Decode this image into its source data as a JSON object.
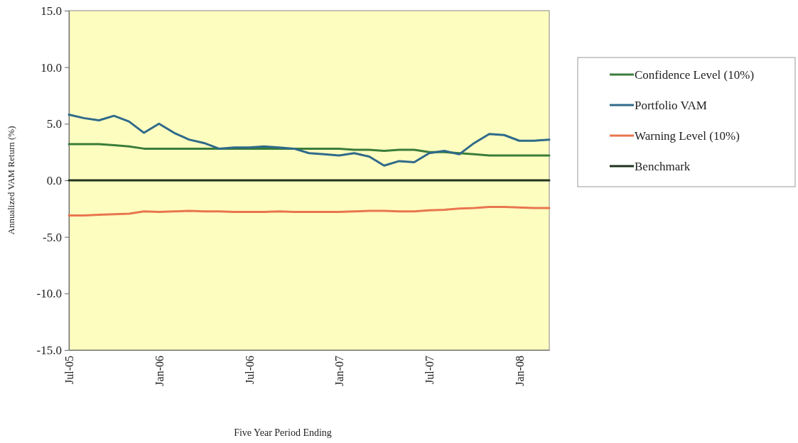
{
  "chart_data": {
    "type": "line",
    "xlabel": "Five Year Period Ending",
    "ylabel": "Annualized VAM Return (%)",
    "categories": [
      "Jul-05",
      null,
      null,
      null,
      null,
      null,
      "Jan-06",
      null,
      null,
      null,
      null,
      null,
      "Jul-06",
      null,
      null,
      null,
      null,
      null,
      "Jan-07",
      null,
      null,
      null,
      null,
      null,
      "Jul-07",
      null,
      null,
      null,
      null,
      null,
      "Jan-08",
      null,
      null
    ],
    "ylim": [
      -15,
      15
    ],
    "yticks": [
      {
        "value": -15,
        "label": "-15.0"
      },
      {
        "value": -10,
        "label": "-10.0"
      },
      {
        "value": -5,
        "label": "-5.0"
      },
      {
        "value": 0,
        "label": "0.0"
      },
      {
        "value": 5,
        "label": "5.0"
      },
      {
        "value": 10,
        "label": "10.0"
      },
      {
        "value": 15,
        "label": "15.0"
      }
    ],
    "legend": "right",
    "series": [
      {
        "name": "Confidence Level (10%)",
        "color": "#3a7d3a",
        "values": [
          3.2,
          3.2,
          3.2,
          3.1,
          3.0,
          2.8,
          2.8,
          2.8,
          2.8,
          2.8,
          2.8,
          2.8,
          2.8,
          2.8,
          2.8,
          2.8,
          2.8,
          2.8,
          2.8,
          2.7,
          2.7,
          2.6,
          2.7,
          2.7,
          2.5,
          2.5,
          2.4,
          2.3,
          2.2,
          2.2,
          2.2,
          2.2,
          2.2
        ]
      },
      {
        "name": "Portfolio VAM",
        "color": "#2f6a8a",
        "values": [
          5.8,
          5.5,
          5.3,
          5.7,
          5.2,
          4.2,
          5.0,
          4.2,
          3.6,
          3.3,
          2.8,
          2.9,
          2.9,
          3.0,
          2.9,
          2.8,
          2.4,
          2.3,
          2.2,
          2.4,
          2.1,
          1.3,
          1.7,
          1.6,
          2.4,
          2.6,
          2.3,
          3.3,
          4.1,
          4.0,
          3.5,
          3.5,
          3.6
        ]
      },
      {
        "name": "Warning Level (10%)",
        "color": "#e8764e",
        "values": [
          -3.1,
          -3.1,
          -3.05,
          -3.0,
          -2.95,
          -2.75,
          -2.8,
          -2.75,
          -2.7,
          -2.75,
          -2.75,
          -2.8,
          -2.8,
          -2.8,
          -2.75,
          -2.8,
          -2.8,
          -2.8,
          -2.8,
          -2.75,
          -2.7,
          -2.7,
          -2.75,
          -2.75,
          -2.65,
          -2.6,
          -2.5,
          -2.45,
          -2.35,
          -2.35,
          -2.4,
          -2.45,
          -2.45
        ]
      },
      {
        "name": "Benchmark",
        "color": "#1e331e",
        "values": [
          0,
          0,
          0,
          0,
          0,
          0,
          0,
          0,
          0,
          0,
          0,
          0,
          0,
          0,
          0,
          0,
          0,
          0,
          0,
          0,
          0,
          0,
          0,
          0,
          0,
          0,
          0,
          0,
          0,
          0,
          0,
          0,
          0
        ]
      }
    ]
  }
}
